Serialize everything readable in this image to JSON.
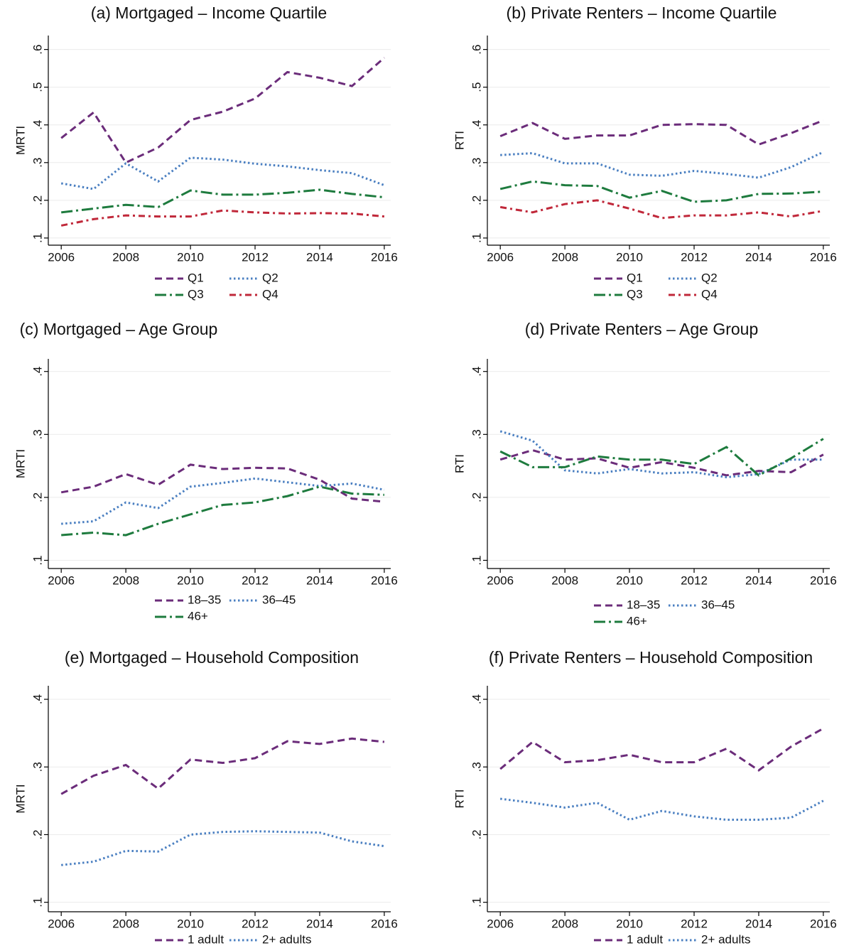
{
  "chart_data": [
    {
      "type": "line",
      "title": "(a) Mortgaged – Income Quartile",
      "ylabel": "MRTI",
      "x": [
        2006,
        2007,
        2008,
        2009,
        2010,
        2011,
        2012,
        2013,
        2014,
        2015,
        2016
      ],
      "xlim": [
        2005.6,
        2016.2
      ],
      "xticks": [
        2006,
        2008,
        2010,
        2012,
        2014,
        2016
      ],
      "ylim": [
        0.081,
        0.637
      ],
      "yticks": [
        {
          "value": 0.1,
          "label": ".1"
        },
        {
          "value": 0.2,
          "label": ".2"
        },
        {
          "value": 0.3,
          "label": ".3"
        },
        {
          "value": 0.4,
          "label": ".4"
        },
        {
          "value": 0.5,
          "label": ".5"
        },
        {
          "value": 0.6,
          "label": ".6"
        }
      ],
      "grid": true,
      "series": [
        {
          "name": "Q1",
          "color": "#6b2c7a",
          "style": "dash",
          "values": [
            0.365,
            0.433,
            0.3,
            0.34,
            0.413,
            0.435,
            0.47,
            0.54,
            0.525,
            0.503,
            0.578
          ]
        },
        {
          "name": "Q2",
          "color": "#4a7fc1",
          "style": "dot",
          "values": [
            0.245,
            0.23,
            0.298,
            0.25,
            0.313,
            0.308,
            0.297,
            0.29,
            0.28,
            0.272,
            0.24
          ]
        },
        {
          "name": "Q3",
          "color": "#1e7b3e",
          "style": "longdashdot",
          "values": [
            0.168,
            0.178,
            0.188,
            0.182,
            0.226,
            0.215,
            0.215,
            0.22,
            0.228,
            0.217,
            0.208
          ]
        },
        {
          "name": "Q4",
          "color": "#c0283a",
          "style": "dashdot",
          "values": [
            0.133,
            0.15,
            0.16,
            0.157,
            0.157,
            0.173,
            0.168,
            0.165,
            0.166,
            0.165,
            0.157
          ]
        }
      ]
    },
    {
      "type": "line",
      "title": "(b) Private Renters – Income Quartile",
      "ylabel": "RTI",
      "x": [
        2006,
        2007,
        2008,
        2009,
        2010,
        2011,
        2012,
        2013,
        2014,
        2015,
        2016
      ],
      "xlim": [
        2005.6,
        2016.2
      ],
      "xticks": [
        2006,
        2008,
        2010,
        2012,
        2014,
        2016
      ],
      "ylim": [
        0.081,
        0.637
      ],
      "yticks": [
        {
          "value": 0.1,
          "label": ".1"
        },
        {
          "value": 0.2,
          "label": ".2"
        },
        {
          "value": 0.3,
          "label": ".3"
        },
        {
          "value": 0.4,
          "label": ".4"
        },
        {
          "value": 0.5,
          "label": ".5"
        },
        {
          "value": 0.6,
          "label": ".6"
        }
      ],
      "grid": true,
      "series": [
        {
          "name": "Q1",
          "color": "#6b2c7a",
          "style": "dash",
          "values": [
            0.37,
            0.405,
            0.363,
            0.372,
            0.372,
            0.4,
            0.402,
            0.4,
            0.348,
            0.378,
            0.412
          ]
        },
        {
          "name": "Q2",
          "color": "#4a7fc1",
          "style": "dot",
          "values": [
            0.32,
            0.325,
            0.298,
            0.298,
            0.268,
            0.265,
            0.278,
            0.27,
            0.26,
            0.288,
            0.328
          ]
        },
        {
          "name": "Q3",
          "color": "#1e7b3e",
          "style": "longdashdot",
          "values": [
            0.23,
            0.25,
            0.24,
            0.238,
            0.207,
            0.225,
            0.196,
            0.2,
            0.217,
            0.218,
            0.223
          ]
        },
        {
          "name": "Q4",
          "color": "#c0283a",
          "style": "dashdot",
          "values": [
            0.182,
            0.168,
            0.19,
            0.2,
            0.178,
            0.153,
            0.16,
            0.16,
            0.168,
            0.157,
            0.172
          ]
        }
      ]
    },
    {
      "type": "line",
      "title": "(c) Mortgaged – Age Group",
      "ylabel": "MRTI",
      "x": [
        2006,
        2007,
        2008,
        2009,
        2010,
        2011,
        2012,
        2013,
        2014,
        2015,
        2016
      ],
      "xlim": [
        2005.6,
        2016.2
      ],
      "xticks": [
        2006,
        2008,
        2010,
        2012,
        2014,
        2016
      ],
      "ylim": [
        0.087,
        0.42
      ],
      "yticks": [
        {
          "value": 0.1,
          "label": ".1"
        },
        {
          "value": 0.2,
          "label": ".2"
        },
        {
          "value": 0.3,
          "label": ".3"
        },
        {
          "value": 0.4,
          "label": ".4"
        }
      ],
      "grid": true,
      "series": [
        {
          "name": "18–35",
          "color": "#6b2c7a",
          "style": "dash",
          "values": [
            0.208,
            0.217,
            0.237,
            0.22,
            0.252,
            0.245,
            0.247,
            0.246,
            0.228,
            0.198,
            0.193
          ]
        },
        {
          "name": "36–45",
          "color": "#4a7fc1",
          "style": "dot",
          "values": [
            0.158,
            0.162,
            0.192,
            0.183,
            0.217,
            0.223,
            0.23,
            0.224,
            0.218,
            0.222,
            0.212
          ]
        },
        {
          "name": "46+",
          "color": "#1e7b3e",
          "style": "longdashdot",
          "values": [
            0.14,
            0.144,
            0.14,
            0.158,
            0.173,
            0.188,
            0.192,
            0.202,
            0.217,
            0.206,
            0.204
          ]
        }
      ]
    },
    {
      "type": "line",
      "title": "(d) Private Renters – Age Group",
      "ylabel": "RTI",
      "x": [
        2006,
        2007,
        2008,
        2009,
        2010,
        2011,
        2012,
        2013,
        2014,
        2015,
        2016
      ],
      "xlim": [
        2005.6,
        2016.2
      ],
      "xticks": [
        2006,
        2008,
        2010,
        2012,
        2014,
        2016
      ],
      "ylim": [
        0.087,
        0.42
      ],
      "yticks": [
        {
          "value": 0.1,
          "label": ".1"
        },
        {
          "value": 0.2,
          "label": ".2"
        },
        {
          "value": 0.3,
          "label": ".3"
        },
        {
          "value": 0.4,
          "label": ".4"
        }
      ],
      "grid": true,
      "series": [
        {
          "name": "18–35",
          "color": "#6b2c7a",
          "style": "dash",
          "values": [
            0.26,
            0.275,
            0.26,
            0.262,
            0.247,
            0.256,
            0.247,
            0.235,
            0.242,
            0.24,
            0.268
          ]
        },
        {
          "name": "36–45",
          "color": "#4a7fc1",
          "style": "dot",
          "values": [
            0.305,
            0.29,
            0.243,
            0.238,
            0.245,
            0.238,
            0.24,
            0.232,
            0.237,
            0.26,
            0.26
          ]
        },
        {
          "name": "46+",
          "color": "#1e7b3e",
          "style": "longdashdot",
          "values": [
            0.273,
            0.248,
            0.248,
            0.265,
            0.26,
            0.26,
            0.253,
            0.28,
            0.235,
            0.262,
            0.293
          ]
        }
      ]
    },
    {
      "type": "line",
      "title": "(e) Mortgaged – Household Composition",
      "ylabel": "MRTI",
      "x": [
        2006,
        2007,
        2008,
        2009,
        2010,
        2011,
        2012,
        2013,
        2014,
        2015,
        2016
      ],
      "xlim": [
        2005.6,
        2016.2
      ],
      "xticks": [
        2006,
        2008,
        2010,
        2012,
        2014,
        2016
      ],
      "ylim": [
        0.086,
        0.42
      ],
      "yticks": [
        {
          "value": 0.1,
          "label": ".1"
        },
        {
          "value": 0.2,
          "label": ".2"
        },
        {
          "value": 0.3,
          "label": ".3"
        },
        {
          "value": 0.4,
          "label": ".4"
        }
      ],
      "grid": true,
      "series": [
        {
          "name": "1 adult",
          "color": "#6b2c7a",
          "style": "dash",
          "values": [
            0.26,
            0.287,
            0.303,
            0.268,
            0.311,
            0.306,
            0.313,
            0.338,
            0.334,
            0.342,
            0.337
          ]
        },
        {
          "name": "2+ adults",
          "color": "#4a7fc1",
          "style": "dot",
          "values": [
            0.155,
            0.16,
            0.176,
            0.175,
            0.2,
            0.204,
            0.205,
            0.204,
            0.203,
            0.19,
            0.183
          ]
        }
      ]
    },
    {
      "type": "line",
      "title": "(f) Private Renters – Household Composition",
      "ylabel": "RTI",
      "x": [
        2006,
        2007,
        2008,
        2009,
        2010,
        2011,
        2012,
        2013,
        2014,
        2015,
        2016
      ],
      "xlim": [
        2005.6,
        2016.2
      ],
      "xticks": [
        2006,
        2008,
        2010,
        2012,
        2014,
        2016
      ],
      "ylim": [
        0.086,
        0.42
      ],
      "yticks": [
        {
          "value": 0.1,
          "label": ".1"
        },
        {
          "value": 0.2,
          "label": ".2"
        },
        {
          "value": 0.3,
          "label": ".3"
        },
        {
          "value": 0.4,
          "label": ".4"
        }
      ],
      "grid": true,
      "series": [
        {
          "name": "1 adult",
          "color": "#6b2c7a",
          "style": "dash",
          "values": [
            0.297,
            0.337,
            0.307,
            0.31,
            0.318,
            0.307,
            0.307,
            0.327,
            0.295,
            0.33,
            0.357
          ]
        },
        {
          "name": "2+ adults",
          "color": "#4a7fc1",
          "style": "dot",
          "values": [
            0.253,
            0.247,
            0.24,
            0.247,
            0.222,
            0.235,
            0.227,
            0.222,
            0.222,
            0.225,
            0.25
          ]
        }
      ]
    }
  ]
}
